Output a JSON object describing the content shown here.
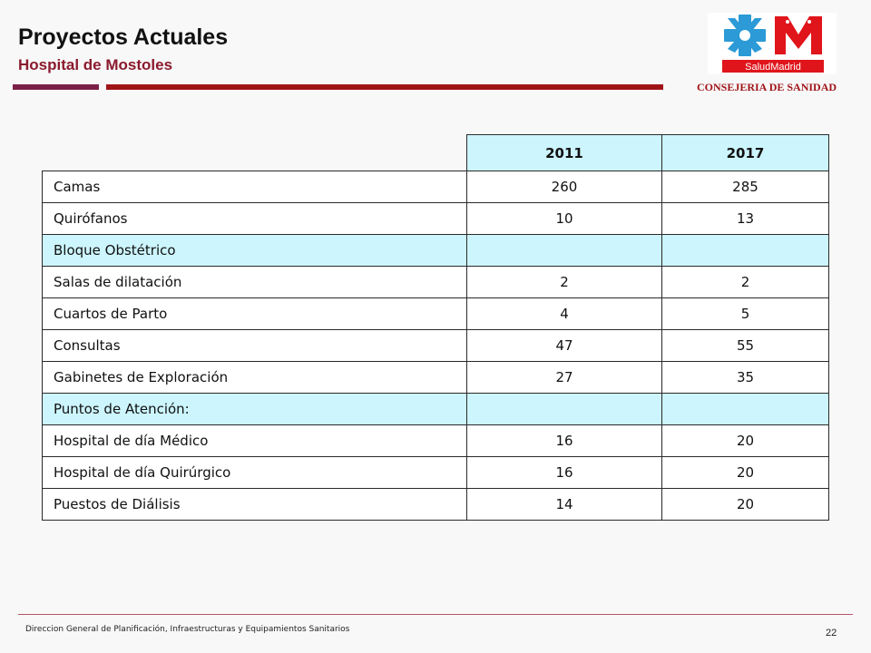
{
  "header": {
    "title": "Proyectos Actuales",
    "subtitle": "Hospital de Mostoles",
    "organization": "CONSEJERIA DE SANIDAD"
  },
  "logo": {
    "text": "SaludMadrid",
    "colors": {
      "cross": "#2b9ad6",
      "star": "#e0151b",
      "letter": "#e0151b",
      "banner": "#e0151b"
    }
  },
  "table": {
    "columns": [
      "2011",
      "2017"
    ],
    "rows": [
      {
        "label": "Camas",
        "v2011": "260",
        "v2017": "285"
      },
      {
        "label": "Quirófanos",
        "v2011": "10",
        "v2017": "13"
      },
      {
        "label": "Bloque Obstétrico",
        "v2011": "",
        "v2017": "",
        "section": true
      },
      {
        "label": "Salas de dilatación",
        "v2011": "2",
        "v2017": "2"
      },
      {
        "label": "Cuartos de Parto",
        "v2011": "4",
        "v2017": "5"
      },
      {
        "label": "Consultas",
        "v2011": "47",
        "v2017": "55"
      },
      {
        "label": "Gabinetes de Exploración",
        "v2011": "27",
        "v2017": "35"
      },
      {
        "label": "Puntos de Atención:",
        "v2011": "",
        "v2017": "",
        "section": true
      },
      {
        "label": "Hospital de día Médico",
        "v2011": "16",
        "v2017": "20"
      },
      {
        "label": "Hospital de día Quirúrgico",
        "v2011": "16",
        "v2017": "20"
      },
      {
        "label": "Puestos de Diálisis",
        "v2011": "14",
        "v2017": "20"
      }
    ]
  },
  "footer": {
    "text": "Direccion General de Planificación, Infraestructuras y Equipamientos Sanitarios",
    "page": "22"
  }
}
